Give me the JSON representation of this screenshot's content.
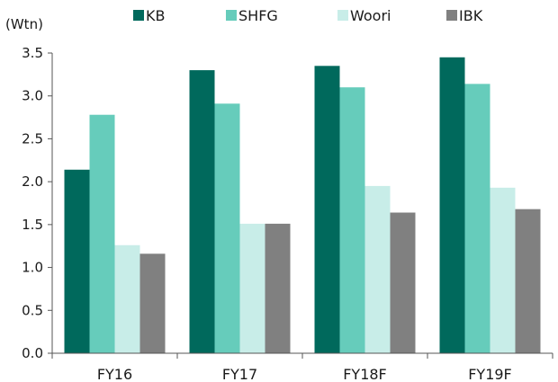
{
  "chart_data": {
    "type": "bar",
    "unit_label": "(Wtn)",
    "categories": [
      "FY16",
      "FY17",
      "FY18F",
      "FY19F"
    ],
    "series": [
      {
        "name": "KB",
        "color": "#00695c",
        "values": [
          2.14,
          3.3,
          3.35,
          3.45
        ]
      },
      {
        "name": "SHFG",
        "color": "#66ccbb",
        "values": [
          2.78,
          2.91,
          3.1,
          3.14
        ]
      },
      {
        "name": "Woori",
        "color": "#c8ede8",
        "values": [
          1.26,
          1.51,
          1.95,
          1.93
        ]
      },
      {
        "name": "IBK",
        "color": "#808080",
        "values": [
          1.16,
          1.51,
          1.64,
          1.68
        ]
      }
    ],
    "yticks": [
      "0.0",
      "0.5",
      "1.0",
      "1.5",
      "2.0",
      "2.5",
      "3.0",
      "3.5"
    ],
    "ylim": [
      0,
      3.5
    ],
    "xlabel": "",
    "ylabel": "",
    "legend_position": "top",
    "grid": false
  }
}
